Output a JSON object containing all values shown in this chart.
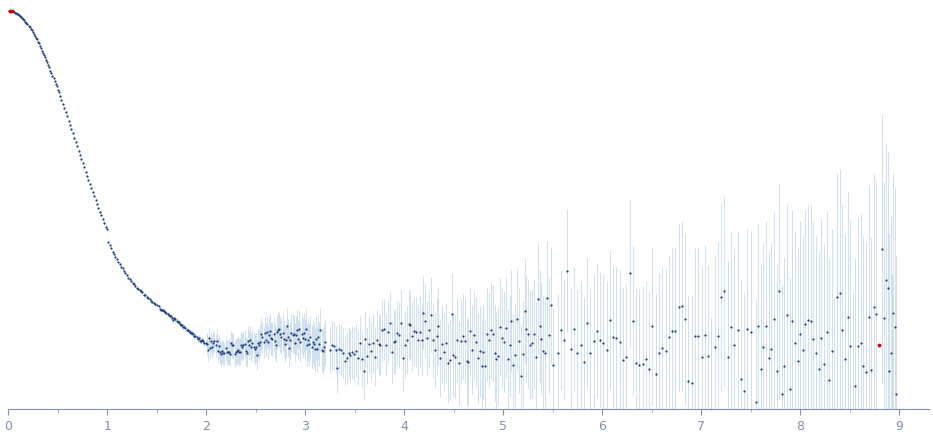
{
  "xlim": [
    0,
    9.3
  ],
  "x_ticks": [
    0,
    1,
    2,
    3,
    4,
    5,
    6,
    7,
    8,
    9
  ],
  "dot_color": "#1f3d7a",
  "error_color": "#b0cce8",
  "outlier_color": "#cc0000",
  "axis_color": "#8090b0",
  "background_color": "#ffffff",
  "dot_size": 2.5,
  "linewidth_error": 0.5,
  "ylim": [
    -0.06,
    0.55
  ],
  "I0": 0.5,
  "baseline": 0.04
}
